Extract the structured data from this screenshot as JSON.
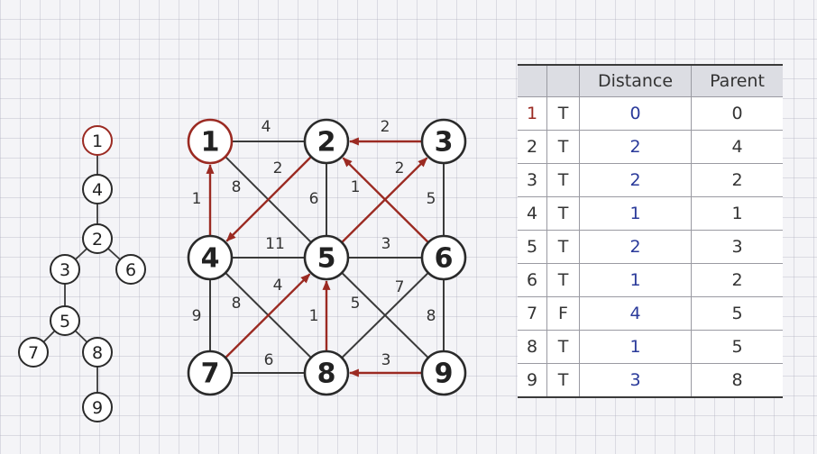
{
  "colors": {
    "accent": "#9b2a22",
    "distance_text": "#2a3a9a",
    "edge": "#3a3a3a",
    "header_bg": "#dcdde3"
  },
  "graph": {
    "nodes": [
      {
        "id": 1,
        "label": "1",
        "root": true
      },
      {
        "id": 2,
        "label": "2"
      },
      {
        "id": 3,
        "label": "3"
      },
      {
        "id": 4,
        "label": "4"
      },
      {
        "id": 5,
        "label": "5"
      },
      {
        "id": 6,
        "label": "6"
      },
      {
        "id": 7,
        "label": "7"
      },
      {
        "id": 8,
        "label": "8"
      },
      {
        "id": 9,
        "label": "9"
      }
    ],
    "edges": [
      {
        "from": 1,
        "to": 2,
        "weight": "4",
        "directed": false
      },
      {
        "from": 1,
        "to": 5,
        "weight": "8",
        "directed": false
      },
      {
        "from": 4,
        "to": 1,
        "weight": "1",
        "directed": true
      },
      {
        "from": 3,
        "to": 2,
        "weight": "2",
        "directed": true
      },
      {
        "from": 2,
        "to": 4,
        "weight": "2",
        "directed": true
      },
      {
        "from": 2,
        "to": 5,
        "weight": "6",
        "directed": false
      },
      {
        "from": 6,
        "to": 2,
        "weight": "1",
        "directed": true
      },
      {
        "from": 5,
        "to": 3,
        "weight": "2",
        "directed": true
      },
      {
        "from": 3,
        "to": 6,
        "weight": "5",
        "directed": false
      },
      {
        "from": 4,
        "to": 5,
        "weight": "11",
        "directed": false
      },
      {
        "from": 5,
        "to": 6,
        "weight": "3",
        "directed": false
      },
      {
        "from": 4,
        "to": 7,
        "weight": "9",
        "directed": false
      },
      {
        "from": 4,
        "to": 8,
        "weight": "8",
        "directed": false
      },
      {
        "from": 7,
        "to": 5,
        "weight": "4",
        "directed": true
      },
      {
        "from": 8,
        "to": 5,
        "weight": "1",
        "directed": true
      },
      {
        "from": 5,
        "to": 9,
        "weight": "5",
        "directed": false
      },
      {
        "from": 6,
        "to": 8,
        "weight": "7",
        "directed": false
      },
      {
        "from": 6,
        "to": 9,
        "weight": "8",
        "directed": false
      },
      {
        "from": 7,
        "to": 8,
        "weight": "6",
        "directed": false
      },
      {
        "from": 9,
        "to": 8,
        "weight": "3",
        "directed": true
      }
    ]
  },
  "tree": {
    "nodes": [
      {
        "id": 1,
        "label": "1",
        "root": true
      },
      {
        "id": 4,
        "label": "4"
      },
      {
        "id": 2,
        "label": "2"
      },
      {
        "id": 3,
        "label": "3"
      },
      {
        "id": 6,
        "label": "6"
      },
      {
        "id": 5,
        "label": "5"
      },
      {
        "id": 7,
        "label": "7"
      },
      {
        "id": 8,
        "label": "8"
      },
      {
        "id": 9,
        "label": "9"
      }
    ],
    "edges": [
      [
        1,
        4
      ],
      [
        4,
        2
      ],
      [
        2,
        3
      ],
      [
        2,
        6
      ],
      [
        3,
        5
      ],
      [
        5,
        7
      ],
      [
        5,
        8
      ],
      [
        8,
        9
      ]
    ]
  },
  "table": {
    "headers": [
      "",
      "",
      "Distance",
      "Parent"
    ],
    "rows": [
      {
        "index": "1",
        "flag": "T",
        "distance": "0",
        "parent": "0",
        "root": true
      },
      {
        "index": "2",
        "flag": "T",
        "distance": "2",
        "parent": "4"
      },
      {
        "index": "3",
        "flag": "T",
        "distance": "2",
        "parent": "2"
      },
      {
        "index": "4",
        "flag": "T",
        "distance": "1",
        "parent": "1"
      },
      {
        "index": "5",
        "flag": "T",
        "distance": "2",
        "parent": "3"
      },
      {
        "index": "6",
        "flag": "T",
        "distance": "1",
        "parent": "2"
      },
      {
        "index": "7",
        "flag": "F",
        "distance": "4",
        "parent": "5"
      },
      {
        "index": "8",
        "flag": "T",
        "distance": "1",
        "parent": "5"
      },
      {
        "index": "9",
        "flag": "T",
        "distance": "3",
        "parent": "8"
      }
    ]
  }
}
